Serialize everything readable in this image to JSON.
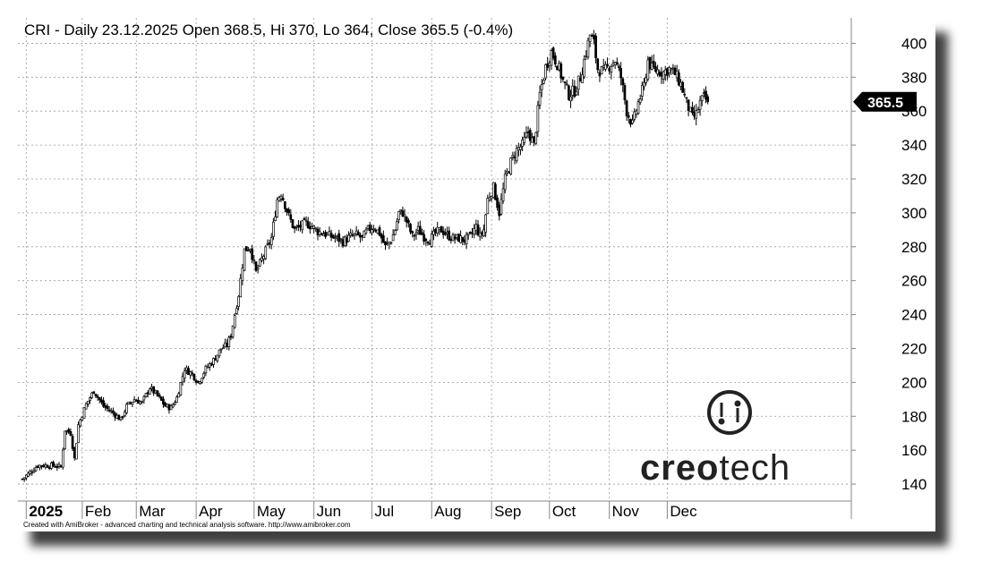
{
  "title": "CRI - Daily 23.12.2025 Open 368.5, Hi 370, Lo 364, Close 365.5 (-0.4%)",
  "credit": "Created with AmiBroker - advanced charting and technical analysis software. http://www.amibroker.com",
  "brand": {
    "name_part1": "creo",
    "name_part2": "tech",
    "logo_icon": "creotech-logo-icon"
  },
  "last_value_label": "365.5",
  "chart_data": {
    "type": "candlestick",
    "symbol": "CRI",
    "date": "23.12.2025",
    "open": 368.5,
    "high": 370,
    "low": 364,
    "close": 365.5,
    "change_pct": -0.4,
    "ylim": [
      130,
      415
    ],
    "y_ticks": [
      140,
      160,
      180,
      200,
      220,
      240,
      260,
      280,
      300,
      320,
      340,
      360,
      380,
      400
    ],
    "x_ticks": [
      {
        "label": "2025",
        "bold": true,
        "day": 2
      },
      {
        "label": "Feb",
        "bold": false,
        "day": 31
      },
      {
        "label": "Mar",
        "bold": false,
        "day": 59
      },
      {
        "label": "Apr",
        "bold": false,
        "day": 90
      },
      {
        "label": "May",
        "bold": false,
        "day": 120
      },
      {
        "label": "Jun",
        "bold": false,
        "day": 151
      },
      {
        "label": "Jul",
        "bold": false,
        "day": 181
      },
      {
        "label": "Aug",
        "bold": false,
        "day": 212
      },
      {
        "label": "Sep",
        "bold": false,
        "day": 243
      },
      {
        "label": "Oct",
        "bold": false,
        "day": 273
      },
      {
        "label": "Nov",
        "bold": false,
        "day": 304
      },
      {
        "label": "Dec",
        "bold": false,
        "day": 334
      }
    ],
    "x_range_days": [
      0,
      357
    ],
    "grid": true,
    "close_path": [
      [
        0,
        143
      ],
      [
        8,
        151
      ],
      [
        16,
        151
      ],
      [
        20,
        150
      ],
      [
        22,
        172
      ],
      [
        25,
        170
      ],
      [
        27,
        155
      ],
      [
        29,
        175
      ],
      [
        33,
        187
      ],
      [
        37,
        195
      ],
      [
        42,
        186
      ],
      [
        47,
        182
      ],
      [
        51,
        178
      ],
      [
        54,
        186
      ],
      [
        58,
        190
      ],
      [
        62,
        188
      ],
      [
        66,
        197
      ],
      [
        70,
        192
      ],
      [
        74,
        186
      ],
      [
        77,
        185
      ],
      [
        80,
        191
      ],
      [
        84,
        208
      ],
      [
        88,
        205
      ],
      [
        91,
        200
      ],
      [
        95,
        208
      ],
      [
        99,
        213
      ],
      [
        103,
        220
      ],
      [
        106,
        222
      ],
      [
        108,
        228
      ],
      [
        112,
        252
      ],
      [
        115,
        278
      ],
      [
        118,
        280
      ],
      [
        121,
        265
      ],
      [
        125,
        275
      ],
      [
        129,
        285
      ],
      [
        132,
        308
      ],
      [
        134,
        312
      ],
      [
        136,
        305
      ],
      [
        138,
        298
      ],
      [
        141,
        290
      ],
      [
        144,
        292
      ],
      [
        147,
        294
      ],
      [
        150,
        292
      ],
      [
        153,
        289
      ],
      [
        156,
        288
      ],
      [
        160,
        286
      ],
      [
        163,
        285
      ],
      [
        166,
        283
      ],
      [
        170,
        286
      ],
      [
        173,
        287
      ],
      [
        176,
        285
      ],
      [
        179,
        290
      ],
      [
        182,
        292
      ],
      [
        185,
        288
      ],
      [
        188,
        280
      ],
      [
        191,
        284
      ],
      [
        193,
        290
      ],
      [
        195,
        300
      ],
      [
        197,
        300
      ],
      [
        199,
        295
      ],
      [
        202,
        286
      ],
      [
        205,
        290
      ],
      [
        208,
        286
      ],
      [
        211,
        284
      ],
      [
        214,
        288
      ],
      [
        217,
        290
      ],
      [
        220,
        287
      ],
      [
        223,
        285
      ],
      [
        226,
        285
      ],
      [
        229,
        284
      ],
      [
        232,
        286
      ],
      [
        235,
        292
      ],
      [
        237,
        286
      ],
      [
        239,
        290
      ],
      [
        241,
        308
      ],
      [
        244,
        315
      ],
      [
        247,
        300
      ],
      [
        250,
        320
      ],
      [
        253,
        330
      ],
      [
        256,
        337
      ],
      [
        259,
        340
      ],
      [
        262,
        348
      ],
      [
        265,
        340
      ],
      [
        268,
        370
      ],
      [
        271,
        386
      ],
      [
        274,
        395
      ],
      [
        277,
        388
      ],
      [
        280,
        378
      ],
      [
        283,
        370
      ],
      [
        286,
        372
      ],
      [
        289,
        380
      ],
      [
        292,
        395
      ],
      [
        294,
        405
      ],
      [
        296,
        400
      ],
      [
        298,
        385
      ],
      [
        301,
        383
      ],
      [
        304,
        387
      ],
      [
        307,
        390
      ],
      [
        310,
        380
      ],
      [
        313,
        360
      ],
      [
        316,
        352
      ],
      [
        319,
        365
      ],
      [
        322,
        375
      ],
      [
        324,
        390
      ],
      [
        326,
        385
      ],
      [
        329,
        384
      ],
      [
        332,
        383
      ],
      [
        335,
        385
      ],
      [
        338,
        382
      ],
      [
        341,
        376
      ],
      [
        344,
        365
      ],
      [
        347,
        356
      ],
      [
        349,
        358
      ],
      [
        351,
        365
      ],
      [
        353,
        368
      ],
      [
        355,
        365.5
      ]
    ]
  }
}
